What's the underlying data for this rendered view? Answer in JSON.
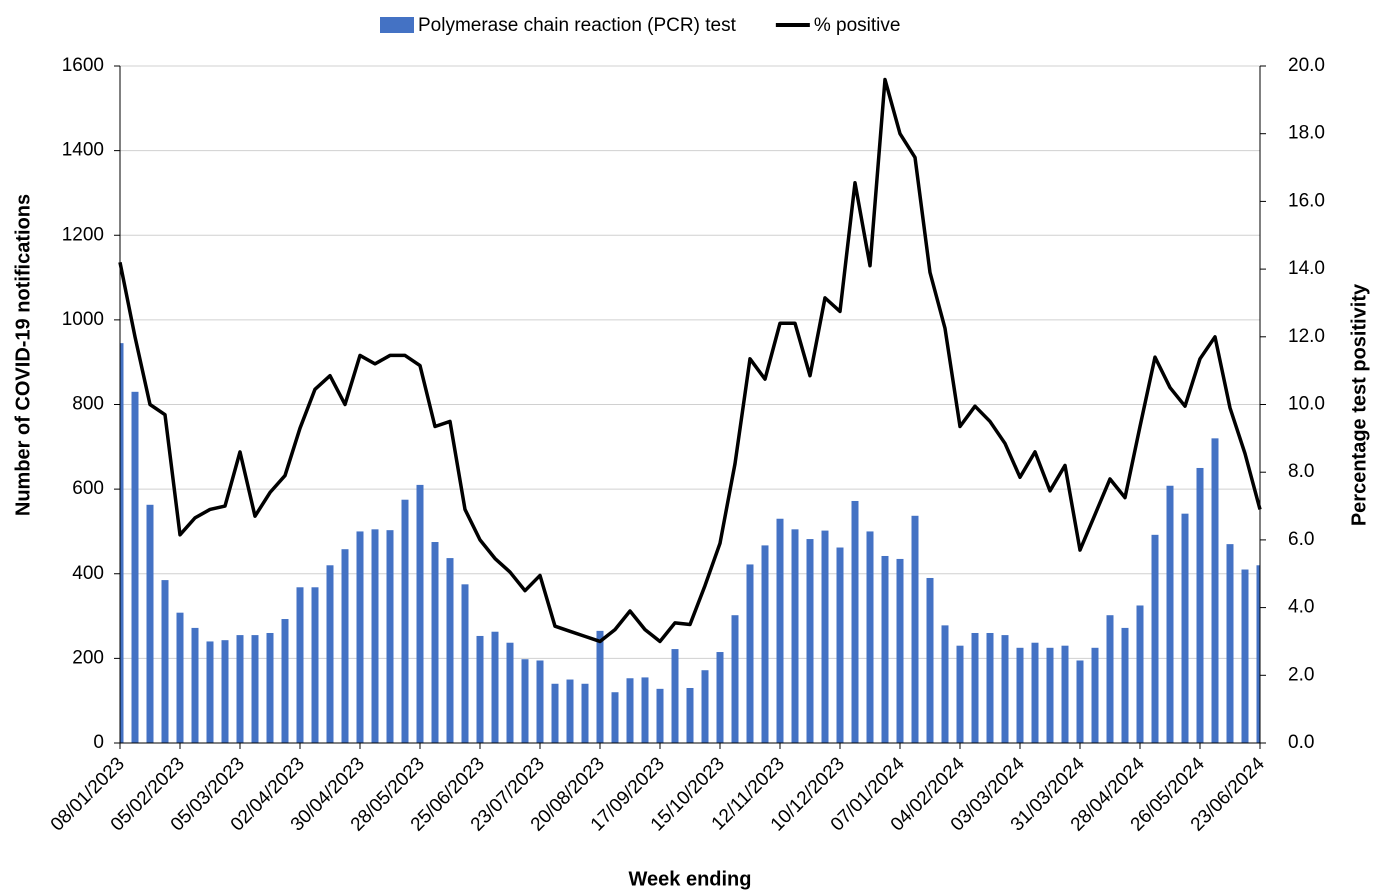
{
  "chart_data": {
    "type": "bar",
    "x_label": "Week ending",
    "y_label": "Number of COVID-19 notifications",
    "y2_label": "Percentage test positivity",
    "categories": [
      "08/01/2023",
      null,
      null,
      null,
      "05/02/2023",
      null,
      null,
      null,
      "05/03/2023",
      null,
      null,
      null,
      "02/04/2023",
      null,
      null,
      null,
      "30/04/2023",
      null,
      null,
      null,
      "28/05/2023",
      null,
      null,
      null,
      "25/06/2023",
      null,
      null,
      null,
      "23/07/2023",
      null,
      null,
      null,
      "20/08/2023",
      null,
      null,
      null,
      "17/09/2023",
      null,
      null,
      null,
      "15/10/2023",
      null,
      null,
      null,
      "12/11/2023",
      null,
      null,
      null,
      "10/12/2023",
      null,
      null,
      null,
      "07/01/2024",
      null,
      null,
      null,
      "04/02/2024",
      null,
      null,
      null,
      "03/03/2024",
      null,
      null,
      null,
      "31/03/2024",
      null,
      null,
      null,
      "28/04/2024",
      null,
      null,
      null,
      "26/05/2024",
      null,
      null,
      null,
      "23/06/2024"
    ],
    "series": [
      {
        "name": "Polymerase chain reaction (PCR) test",
        "type": "bar",
        "color": "#4472c4",
        "values": [
          945,
          830,
          563,
          385,
          308,
          272,
          240,
          243,
          255,
          255,
          260,
          293,
          368,
          368,
          420,
          458,
          500,
          505,
          503,
          575,
          610,
          475,
          437,
          375,
          253,
          263,
          237,
          198,
          195,
          140,
          150,
          140,
          265,
          120,
          153,
          155,
          128,
          222,
          130,
          172,
          215,
          302,
          422,
          467,
          530,
          505,
          482,
          502,
          462,
          572,
          500,
          442,
          435,
          537,
          390,
          278,
          230,
          260,
          260,
          255,
          225,
          237,
          225,
          230,
          195,
          225,
          302,
          272,
          325,
          492,
          608,
          542,
          650,
          720,
          470,
          410,
          420
        ]
      },
      {
        "name": "% positive",
        "type": "line",
        "axis": "y2",
        "color": "#000000",
        "values": [
          14.2,
          12.0,
          10.0,
          9.7,
          6.15,
          6.65,
          6.9,
          7.0,
          8.6,
          6.7,
          7.4,
          7.9,
          9.3,
          10.45,
          10.85,
          10.0,
          11.45,
          11.2,
          11.45,
          11.45,
          11.15,
          9.35,
          9.5,
          6.9,
          6.0,
          5.45,
          5.05,
          4.5,
          4.95,
          3.45,
          3.3,
          3.15,
          3.0,
          3.35,
          3.9,
          3.35,
          3.0,
          3.55,
          3.5,
          4.65,
          5.9,
          8.25,
          11.35,
          10.75,
          12.4,
          12.4,
          10.85,
          13.15,
          12.75,
          16.55,
          14.1,
          19.6,
          18.0,
          17.3,
          13.9,
          12.25,
          9.35,
          9.95,
          9.5,
          8.85,
          7.85,
          8.6,
          7.45,
          8.2,
          5.7,
          6.75,
          7.8,
          7.25,
          9.35,
          11.4,
          10.5,
          9.95,
          11.35,
          12.0,
          9.9,
          8.55,
          6.9
        ]
      }
    ],
    "ylim": [
      0,
      1600
    ],
    "yticks": [
      0,
      200,
      400,
      600,
      800,
      1000,
      1200,
      1400,
      1600
    ],
    "y2lim": [
      0,
      20
    ],
    "y2ticks": [
      {
        "value": 0,
        "label": "0.0"
      },
      {
        "value": 2,
        "label": "2.0"
      },
      {
        "value": 4,
        "label": "4.0"
      },
      {
        "value": 6,
        "label": "6.0"
      },
      {
        "value": 8,
        "label": "8.0"
      },
      {
        "value": 10,
        "label": "10.0"
      },
      {
        "value": 12,
        "label": "12.0"
      },
      {
        "value": 14,
        "label": "14.0"
      },
      {
        "value": 16,
        "label": "16.0"
      },
      {
        "value": 18,
        "label": "18.0"
      },
      {
        "value": 20,
        "label": "20.0"
      }
    ],
    "grid": true,
    "legend": "top"
  }
}
